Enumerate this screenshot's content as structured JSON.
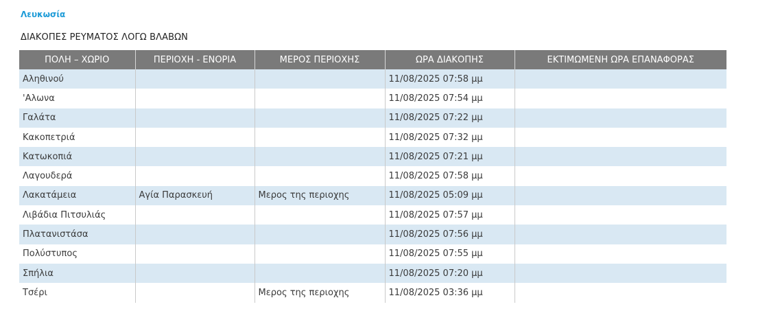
{
  "region": {
    "title": "Λευκωσία"
  },
  "section": {
    "heading": "ΔΙΑΚΟΠΕΣ ΡΕΥΜΑΤΟΣ ΛΟΓΩ ΒΛΑΒΩΝ"
  },
  "table": {
    "headers": [
      "ΠΟΛΗ – ΧΩΡΙΟ",
      "ΠΕΡΙΟΧΗ - ΕΝΟΡΙΑ",
      "ΜΕΡΟΣ ΠΕΡΙΟΧΗΣ",
      "ΩΡΑ ΔΙΑΚΟΠΗΣ",
      "ΕΚΤΙΜΩΜΕΝΗ ΩΡΑ ΕΠΑΝΑΦΟΡΑΣ"
    ],
    "rows": [
      [
        "Αληθινού",
        "",
        "",
        "11/08/2025 07:58 μμ",
        ""
      ],
      [
        "'Αλωνα",
        "",
        "",
        "11/08/2025 07:54 μμ",
        ""
      ],
      [
        "Γαλάτα",
        "",
        "",
        "11/08/2025 07:22 μμ",
        ""
      ],
      [
        "Κακοπετριά",
        "",
        "",
        "11/08/2025 07:32 μμ",
        ""
      ],
      [
        "Κατωκοπιά",
        "",
        "",
        "11/08/2025 07:21 μμ",
        ""
      ],
      [
        "Λαγουδερά",
        "",
        "",
        "11/08/2025 07:58 μμ",
        ""
      ],
      [
        "Λακατάμεια",
        "Αγία Παρασκευή",
        "Μερος της περιοχης",
        "11/08/2025 05:09 μμ",
        ""
      ],
      [
        "Λιβάδια Πιτσυλιάς",
        "",
        "",
        "11/08/2025 07:57 μμ",
        ""
      ],
      [
        "Πλατανιστάσα",
        "",
        "",
        "11/08/2025 07:56 μμ",
        ""
      ],
      [
        "Πολύστυπος",
        "",
        "",
        "11/08/2025 07:55 μμ",
        ""
      ],
      [
        "Σπήλια",
        "",
        "",
        "11/08/2025 07:20 μμ",
        ""
      ],
      [
        "Τσέρι",
        "",
        "Μερος της περιοχης",
        "11/08/2025 03:36 μμ",
        ""
      ]
    ]
  }
}
